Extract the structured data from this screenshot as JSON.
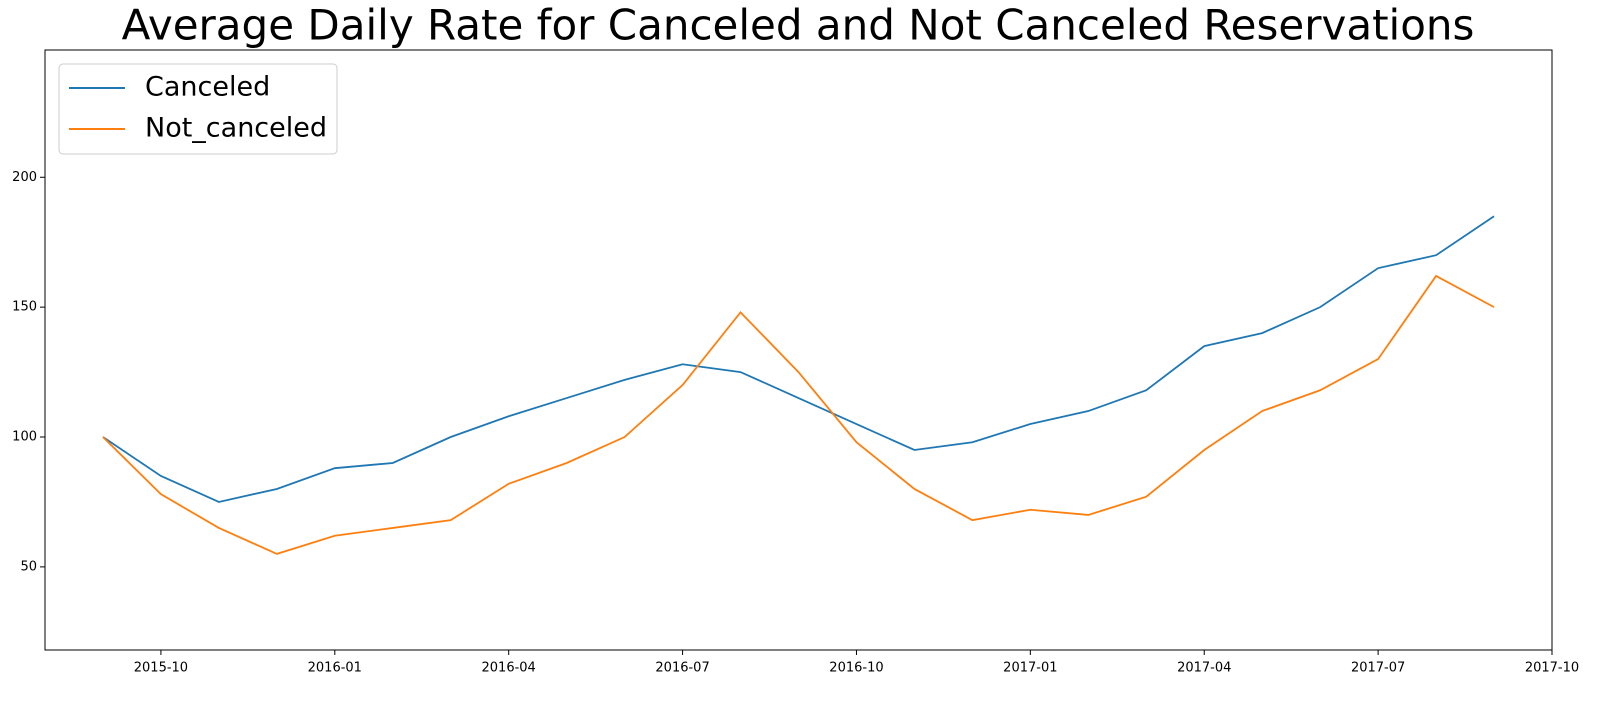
{
  "chart_data": {
    "type": "line",
    "title": "Average Daily Rate for Canceled and Not Canceled Reservations",
    "x": [
      "2015-09",
      "2015-10",
      "2015-11",
      "2015-12",
      "2016-01",
      "2016-02",
      "2016-03",
      "2016-04",
      "2016-05",
      "2016-06",
      "2016-07",
      "2016-08",
      "2016-09",
      "2016-10",
      "2016-11",
      "2016-12",
      "2017-01",
      "2017-02",
      "2017-03",
      "2017-04",
      "2017-05",
      "2017-06",
      "2017-07",
      "2017-08",
      "2017-09"
    ],
    "series": [
      {
        "name": "Canceled",
        "color": "#1f77b4",
        "values": [
          100,
          85,
          75,
          80,
          88,
          90,
          100,
          108,
          115,
          122,
          128,
          125,
          115,
          105,
          95,
          98,
          105,
          110,
          118,
          135,
          140,
          150,
          165,
          170,
          185
        ]
      },
      {
        "name": "Not_canceled",
        "color": "#ff7f0e",
        "values": [
          100,
          78,
          65,
          55,
          62,
          65,
          68,
          82,
          90,
          100,
          120,
          148,
          125,
          98,
          80,
          68,
          72,
          70,
          77,
          95,
          110,
          118,
          130,
          162,
          150
        ]
      }
    ],
    "xlim": [
      "2015-08",
      "2017-10"
    ],
    "xticks": [
      "2015-10",
      "2016-01",
      "2016-04",
      "2016-07",
      "2016-10",
      "2017-01",
      "2017-04",
      "2017-07",
      "2017-10"
    ],
    "ylim": [
      18,
      249
    ],
    "yticks": [
      50,
      100,
      150,
      200
    ],
    "legend": "upper-left"
  }
}
